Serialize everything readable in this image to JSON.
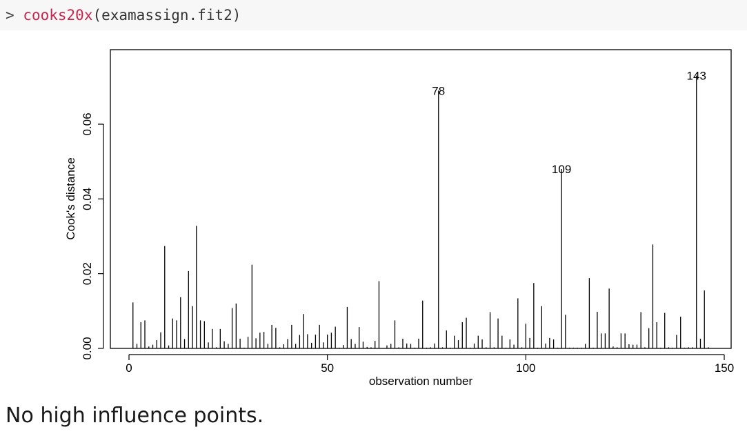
{
  "code": {
    "prompt": ">",
    "function": "cooks20x",
    "args": "(examassign.fit2)"
  },
  "caption": "No high influence points.",
  "chart_data": {
    "type": "bar",
    "style": "vertical-lines",
    "xlabel": "observation number",
    "ylabel": "Cook's distance",
    "xlim": [
      -5,
      150
    ],
    "ylim": [
      0,
      0.08
    ],
    "xticks": [
      0,
      50,
      100,
      150
    ],
    "yticks": [
      0.0,
      0.02,
      0.04,
      0.06
    ],
    "ytick_labels": [
      "0.00",
      "0.02",
      "0.04",
      "0.06"
    ],
    "line_color": "#000000",
    "x": [
      1,
      2,
      3,
      4,
      5,
      6,
      7,
      8,
      9,
      10,
      11,
      12,
      13,
      14,
      15,
      16,
      17,
      18,
      19,
      20,
      21,
      22,
      23,
      24,
      25,
      26,
      27,
      28,
      29,
      30,
      31,
      32,
      33,
      34,
      35,
      36,
      37,
      38,
      39,
      40,
      41,
      42,
      43,
      44,
      45,
      46,
      47,
      48,
      49,
      50,
      51,
      52,
      53,
      54,
      55,
      56,
      57,
      58,
      59,
      60,
      61,
      62,
      63,
      64,
      65,
      66,
      67,
      68,
      69,
      70,
      71,
      72,
      73,
      74,
      75,
      76,
      77,
      78,
      79,
      80,
      81,
      82,
      83,
      84,
      85,
      86,
      87,
      88,
      89,
      90,
      91,
      92,
      93,
      94,
      95,
      96,
      97,
      98,
      99,
      100,
      101,
      102,
      103,
      104,
      105,
      106,
      107,
      108,
      109,
      110,
      111,
      112,
      113,
      114,
      115,
      116,
      117,
      118,
      119,
      120,
      121,
      122,
      123,
      124,
      125,
      126,
      127,
      128,
      129,
      130,
      131,
      132,
      133,
      134,
      135,
      136,
      137,
      138,
      139,
      140,
      141,
      142,
      143,
      144,
      145,
      146
    ],
    "values": [
      0.0123,
      0.0012,
      0.007,
      0.0075,
      0.0005,
      0.001,
      0.0022,
      0.0043,
      0.0274,
      0.0008,
      0.008,
      0.0075,
      0.0137,
      0.0025,
      0.0207,
      0.0113,
      0.0328,
      0.0075,
      0.0073,
      0.0016,
      0.0052,
      0.0003,
      0.0052,
      0.0019,
      0.0012,
      0.0108,
      0.012,
      0.0026,
      0.0002,
      0.0031,
      0.0224,
      0.0027,
      0.0042,
      0.0044,
      0.0012,
      0.0063,
      0.0055,
      0.0003,
      0.0011,
      0.0025,
      0.0063,
      0.0012,
      0.0036,
      0.0092,
      0.0038,
      0.0015,
      0.0037,
      0.0063,
      0.0016,
      0.0037,
      0.0042,
      0.0058,
      0.0002,
      0.0009,
      0.0111,
      0.0025,
      0.0012,
      0.0057,
      0.0018,
      0.0004,
      0.0003,
      0.002,
      0.018,
      0.0001,
      0.0008,
      0.0012,
      0.0075,
      0.0003,
      0.0026,
      0.0013,
      0.0012,
      0.0002,
      0.0026,
      0.0128,
      0.0002,
      0.0003,
      0.0013,
      0.069,
      0.0003,
      0.0048,
      0.0002,
      0.0034,
      0.0022,
      0.007,
      0.0082,
      0.0002,
      0.0013,
      0.0034,
      0.0024,
      0.0003,
      0.0097,
      0.0003,
      0.008,
      0.0034,
      0.0002,
      0.0024,
      0.001,
      0.0134,
      0.0003,
      0.0066,
      0.0028,
      0.0175,
      0.0002,
      0.0113,
      0.0013,
      0.0028,
      0.0024,
      0.0002,
      0.048,
      0.009,
      0.0002,
      0.0002,
      0.0002,
      0.0002,
      0.0012,
      0.0188,
      0.0002,
      0.0098,
      0.004,
      0.004,
      0.016,
      0.0005,
      0.0003,
      0.004,
      0.004,
      0.0011,
      0.001,
      0.001,
      0.0097,
      0.0003,
      0.0054,
      0.0278,
      0.007,
      0.0002,
      0.0095,
      0.0003,
      0.0002,
      0.0036,
      0.0085,
      0.0002,
      0.0003,
      0.0003,
      0.073,
      0.0026,
      0.0155,
      0.0003
    ],
    "annotations": [
      {
        "x": 78,
        "y": 0.069,
        "label": "78"
      },
      {
        "x": 109,
        "y": 0.048,
        "label": "109"
      },
      {
        "x": 143,
        "y": 0.073,
        "label": "143"
      }
    ]
  }
}
